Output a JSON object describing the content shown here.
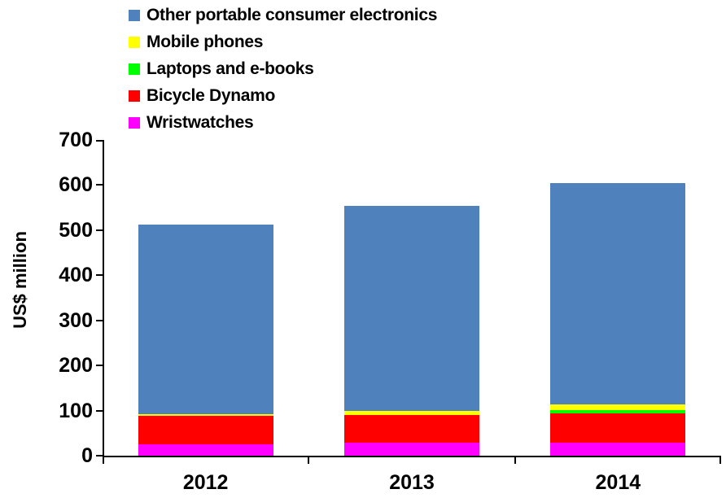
{
  "chart_data": {
    "type": "bar",
    "stacked": true,
    "title": "",
    "ylabel": "US$ million",
    "xlabel": "",
    "categories": [
      "2012",
      "2013",
      "2014"
    ],
    "series": [
      {
        "name": "Wristwatches",
        "color": "#FF00FF",
        "values": [
          25,
          29,
          29
        ]
      },
      {
        "name": "Bicycle Dynamo",
        "color": "#FF0000",
        "values": [
          64,
          61,
          65
        ]
      },
      {
        "name": "Laptops and e-books",
        "color": "#00FF00",
        "values": [
          0,
          0,
          7
        ]
      },
      {
        "name": "Mobile phones",
        "color": "#FFFF00",
        "values": [
          3,
          9,
          12
        ]
      },
      {
        "name": "Other portable consumer electronics",
        "color": "#4F81BD",
        "values": [
          420,
          454,
          492
        ]
      }
    ],
    "totals": [
      512,
      553,
      605
    ],
    "ylim": [
      0,
      700
    ],
    "yticks": [
      0,
      100,
      200,
      300,
      400,
      500,
      600,
      700
    ],
    "grid": false,
    "legend": {
      "position": "top-left",
      "order": [
        "Other portable consumer electronics",
        "Mobile phones",
        "Laptops and e-books",
        "Bicycle Dynamo",
        "Wristwatches"
      ]
    },
    "axis_color": "#000000",
    "background_color": "#FFFFFF"
  }
}
